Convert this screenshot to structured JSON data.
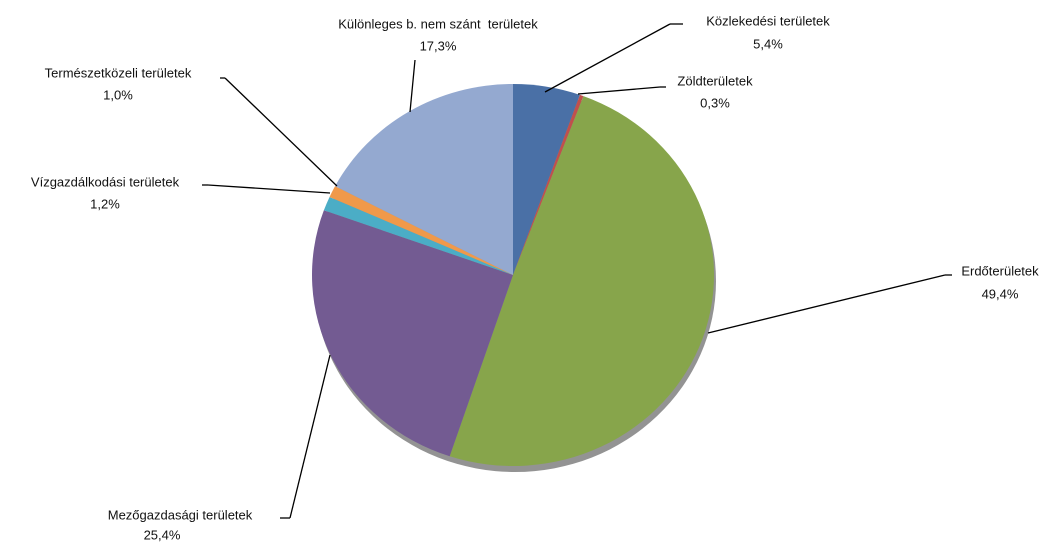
{
  "chart_data": {
    "type": "pie",
    "categories": [
      "Közlekedési területek",
      "Zöldterületek",
      "Erdőterületek",
      "Mezőgazdasági területek",
      "Vízgazdálkodási területek",
      "Természetközeli területek",
      "Különleges b. nem szánt  területek"
    ],
    "values": [
      5.4,
      0.3,
      49.4,
      25.4,
      1.2,
      1.0,
      17.3
    ],
    "value_labels": [
      "5,4%",
      "0,3%",
      "49,4%",
      "25,4%",
      "1,2%",
      "1,0%",
      "17,3%"
    ],
    "colors": [
      "#4a70a6",
      "#c0504d",
      "#87a54b",
      "#735b92",
      "#4badc6",
      "#f0994a",
      "#94a9d0"
    ]
  }
}
